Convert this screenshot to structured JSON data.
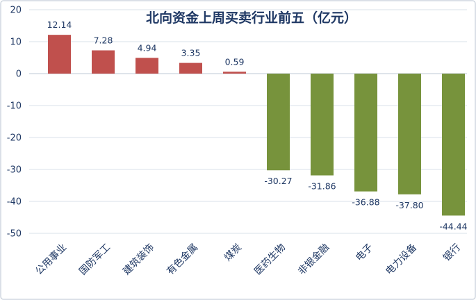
{
  "chart_data": {
    "type": "bar",
    "title": "北向资金上周买卖行业前五（亿元）",
    "xlabel": "",
    "ylabel": "",
    "categories": [
      "公用事业",
      "国防军工",
      "建筑装饰",
      "有色金属",
      "煤炭",
      "医药生物",
      "非银金融",
      "电子",
      "电力设备",
      "银行"
    ],
    "values": [
      12.14,
      7.28,
      4.94,
      3.35,
      0.59,
      -30.27,
      -31.86,
      -36.88,
      -37.8,
      -44.44
    ],
    "value_labels": [
      "12.14",
      "7.28",
      "4.94",
      "3.35",
      "0.59",
      "-30.27",
      "-31.86",
      "-36.88",
      "-37.80",
      "-44.44"
    ],
    "ylim": [
      -50,
      20
    ],
    "y_ticks": [
      20,
      10,
      0,
      -10,
      -20,
      -30,
      -40,
      -50
    ],
    "grid": true,
    "legend": "none",
    "colors": {
      "positive": "#c0504d",
      "negative": "#77933c"
    }
  }
}
